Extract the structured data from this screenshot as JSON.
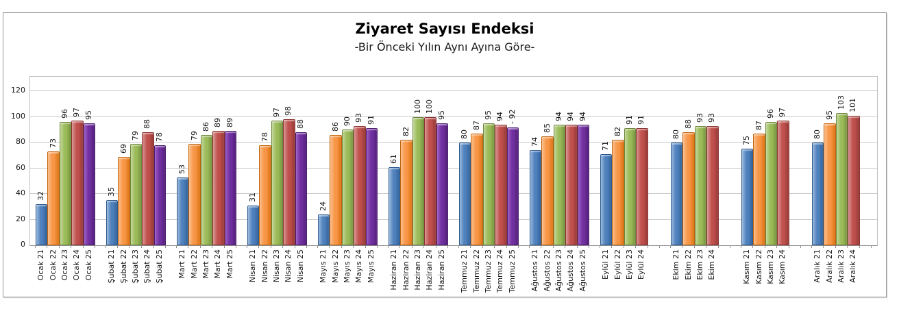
{
  "chart_data": {
    "type": "bar",
    "title": "Ziyaret Sayısı Endeksi",
    "subtitle": "-Bir Önceki Yılın Aynı Ayına Göre-",
    "xlabel": "",
    "ylabel": "",
    "ylim": [
      0,
      120
    ],
    "yticks": [
      0,
      20,
      40,
      60,
      80,
      100,
      120
    ],
    "grid": true,
    "legend": "none",
    "value_labels": "rotated-above-bars",
    "category_labels": "rotated-90",
    "slots_per_group": 5,
    "series_palette": {
      "21": {
        "name": "year-21-blue",
        "base": "#4F81BD",
        "light": "#9AB9DD",
        "dark": "#33639B",
        "border": "#2E5A8E"
      },
      "22": {
        "name": "year-22-orange",
        "base": "#F79646",
        "light": "#FBBE8C",
        "dark": "#DD7313",
        "border": "#C1630C"
      },
      "23": {
        "name": "year-23-green",
        "base": "#9BBB59",
        "light": "#C3D69B",
        "dark": "#789440",
        "border": "#6E8639"
      },
      "24": {
        "name": "year-24-red",
        "base": "#C0504D",
        "light": "#D89694",
        "dark": "#963A37",
        "border": "#8B3330"
      },
      "25": {
        "name": "year-25-purple",
        "base": "#7030A0",
        "light": "#9D5FC6",
        "dark": "#521F78",
        "border": "#4D1D70"
      }
    },
    "groups": [
      {
        "month": "Ocak",
        "bars": [
          {
            "label": "Ocak 21",
            "year": "21",
            "value": 32
          },
          {
            "label": "Ocak 22",
            "year": "22",
            "value": 73
          },
          {
            "label": "Ocak 23",
            "year": "23",
            "value": 96
          },
          {
            "label": "Ocak 24",
            "year": "24",
            "value": 97
          },
          {
            "label": "Ocak 25",
            "year": "25",
            "value": 95
          }
        ]
      },
      {
        "month": "Şubat",
        "bars": [
          {
            "label": "Şubat 21",
            "year": "21",
            "value": 35
          },
          {
            "label": "Şubat 22",
            "year": "22",
            "value": 69
          },
          {
            "label": "Şubat 23",
            "year": "23",
            "value": 79
          },
          {
            "label": "Şubat 24",
            "year": "24",
            "value": 88
          },
          {
            "label": "Şubat 25",
            "year": "25",
            "value": 78
          }
        ]
      },
      {
        "month": "Mart",
        "bars": [
          {
            "label": "Mart 21",
            "year": "21",
            "value": 53
          },
          {
            "label": "Mart 22",
            "year": "22",
            "value": 79
          },
          {
            "label": "Mart 23",
            "year": "23",
            "value": 86
          },
          {
            "label": "Mart 24",
            "year": "24",
            "value": 89
          },
          {
            "label": "Mart 25",
            "year": "25",
            "value": 89
          }
        ]
      },
      {
        "month": "Nisan",
        "bars": [
          {
            "label": "Nisan 21",
            "year": "21",
            "value": 31
          },
          {
            "label": "Nisan 22",
            "year": "22",
            "value": 78
          },
          {
            "label": "Nisan 23",
            "year": "23",
            "value": 97
          },
          {
            "label": "Nisan 24",
            "year": "24",
            "value": 98
          },
          {
            "label": "Nisan 25",
            "year": "25",
            "value": 88
          }
        ]
      },
      {
        "month": "Mayıs",
        "bars": [
          {
            "label": "Mayıs 21",
            "year": "21",
            "value": 24
          },
          {
            "label": "Mayıs 22",
            "year": "22",
            "value": 86
          },
          {
            "label": "Mayıs 23",
            "year": "23",
            "value": 90
          },
          {
            "label": "Mayıs 24",
            "year": "24",
            "value": 93
          },
          {
            "label": "Mayıs 25",
            "year": "25",
            "value": 91
          }
        ]
      },
      {
        "month": "Haziran",
        "bars": [
          {
            "label": "Haziran 21",
            "year": "21",
            "value": 61
          },
          {
            "label": "Haziran 22",
            "year": "22",
            "value": 82
          },
          {
            "label": "Haziran 23",
            "year": "23",
            "value": 100
          },
          {
            "label": "Haziran 24",
            "year": "24",
            "value": 100
          },
          {
            "label": "Haziran 25",
            "year": "25",
            "value": 95
          }
        ]
      },
      {
        "month": "Temmuz",
        "bars": [
          {
            "label": "Temmuz 21",
            "year": "21",
            "value": 80
          },
          {
            "label": "Temmuz 22",
            "year": "22",
            "value": 87
          },
          {
            "label": "Temmuz 23",
            "year": "23",
            "value": 95
          },
          {
            "label": "Temmuz 24",
            "year": "24",
            "value": 94
          },
          {
            "label": "Temmuz 25",
            "year": "25",
            "value": 92,
            "prefix": "- "
          }
        ]
      },
      {
        "month": "Ağustos",
        "bars": [
          {
            "label": "Ağustos 21",
            "year": "21",
            "value": 74
          },
          {
            "label": "Ağustos 22",
            "year": "22",
            "value": 85
          },
          {
            "label": "Ağustos 23",
            "year": "23",
            "value": 94
          },
          {
            "label": "Ağustos 24",
            "year": "24",
            "value": 94
          },
          {
            "label": "Ağustos 25",
            "year": "25",
            "value": 94
          }
        ]
      },
      {
        "month": "Eylül",
        "bars": [
          {
            "label": "Eylül 21",
            "year": "21",
            "value": 71
          },
          {
            "label": "Eylül 22",
            "year": "22",
            "value": 82
          },
          {
            "label": "Eylül 23",
            "year": "23",
            "value": 91
          },
          {
            "label": "Eylül 24",
            "year": "24",
            "value": 91
          }
        ]
      },
      {
        "month": "Ekim",
        "bars": [
          {
            "label": "Ekim 21",
            "year": "21",
            "value": 80
          },
          {
            "label": "Ekim 22",
            "year": "22",
            "value": 88
          },
          {
            "label": "Ekim 23",
            "year": "23",
            "value": 93
          },
          {
            "label": "Ekim 24",
            "year": "24",
            "value": 93
          }
        ]
      },
      {
        "month": "Kasım",
        "bars": [
          {
            "label": "Kasım 21",
            "year": "21",
            "value": 75
          },
          {
            "label": "Kasım 22",
            "year": "22",
            "value": 87
          },
          {
            "label": "Kasım 23",
            "year": "23",
            "value": 96
          },
          {
            "label": "Kasım 24",
            "year": "24",
            "value": 97
          }
        ]
      },
      {
        "month": "Aralık",
        "bars": [
          {
            "label": "Aralık 21",
            "year": "21",
            "value": 80
          },
          {
            "label": "Aralık 22",
            "year": "22",
            "value": 95
          },
          {
            "label": "Aralık 23",
            "year": "23",
            "value": 103
          },
          {
            "label": "Aralık 24",
            "year": "24",
            "value": 101
          }
        ]
      }
    ]
  }
}
